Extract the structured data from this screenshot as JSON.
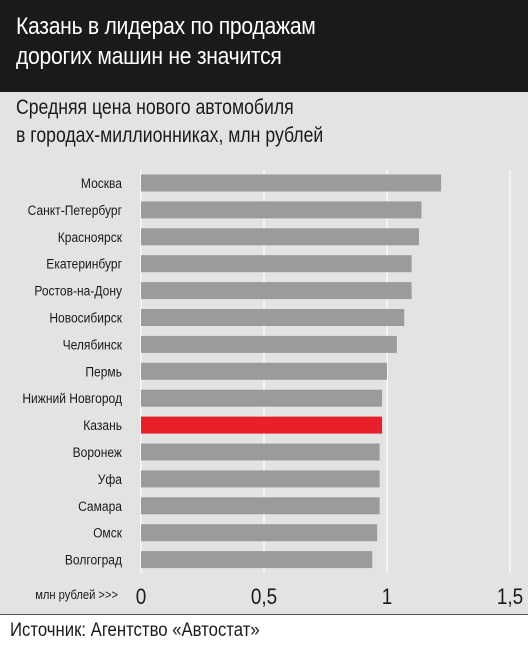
{
  "title": "Казань в лидерах по продажам\nдорогих машин не значится",
  "subtitle": "Средняя цена нового автомобиля\nв городах-миллионниках, млн рублей",
  "source": "Источник: Агентство «Автостат»",
  "colors": {
    "bar": "#9b9b9b",
    "highlight": "#e8202a",
    "panel": "#e3e3e3",
    "header": "#1a1a1a"
  },
  "chart_data": {
    "type": "bar",
    "orientation": "horizontal",
    "categories": [
      "Москва",
      "Санкт-Петербург",
      "Красноярск",
      "Екатеринбург",
      "Ростов-на-Дону",
      "Новосибирск",
      "Челябинск",
      "Пермь",
      "Нижний Новгород",
      "Казань",
      "Воронеж",
      "Уфа",
      "Самара",
      "Омск",
      "Волгоград"
    ],
    "values": [
      1.22,
      1.14,
      1.13,
      1.1,
      1.1,
      1.07,
      1.04,
      1.0,
      0.98,
      0.98,
      0.97,
      0.97,
      0.97,
      0.96,
      0.94
    ],
    "highlight": "Казань",
    "xlim": [
      0,
      1.5
    ],
    "xticks": [
      0,
      0.5,
      1,
      1.5
    ],
    "xtick_labels": [
      "0",
      "0,5",
      "1",
      "1,5"
    ],
    "xlabel": "млн рублей >>>",
    "grid": true
  }
}
